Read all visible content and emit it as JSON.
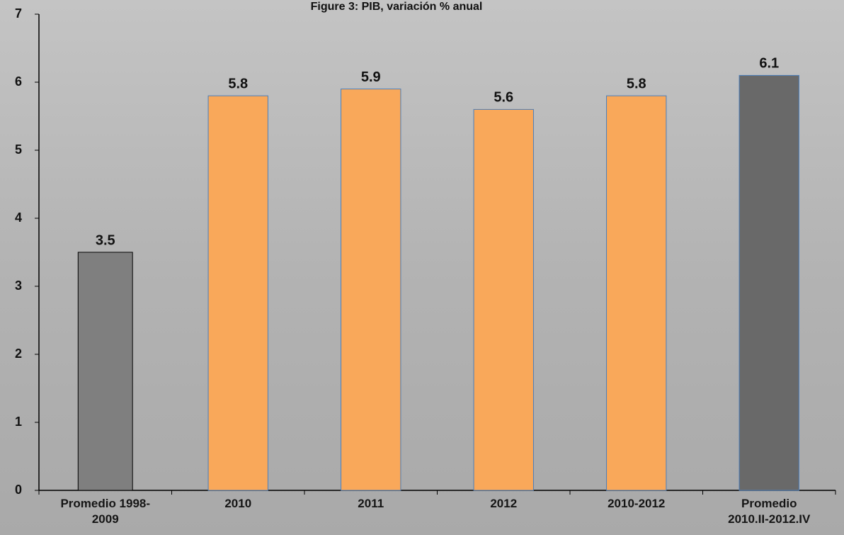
{
  "chart_data": {
    "type": "bar",
    "title": "Figure 3: PIB, variación % anual",
    "categories": [
      "Promedio 1998-\n2009",
      "2010",
      "2011",
      "2012",
      "2010-2012",
      "Promedio\n2010.II-2012.IV"
    ],
    "values": [
      3.5,
      5.8,
      5.9,
      5.6,
      5.8,
      6.1
    ],
    "colors": [
      "#7f7f7f",
      "#f9a85a",
      "#f9a85a",
      "#f9a85a",
      "#f9a85a",
      "#696969"
    ],
    "ylim": [
      0,
      7
    ],
    "yticks": [
      0,
      1,
      2,
      3,
      4,
      5,
      6,
      7
    ],
    "grid": false
  }
}
